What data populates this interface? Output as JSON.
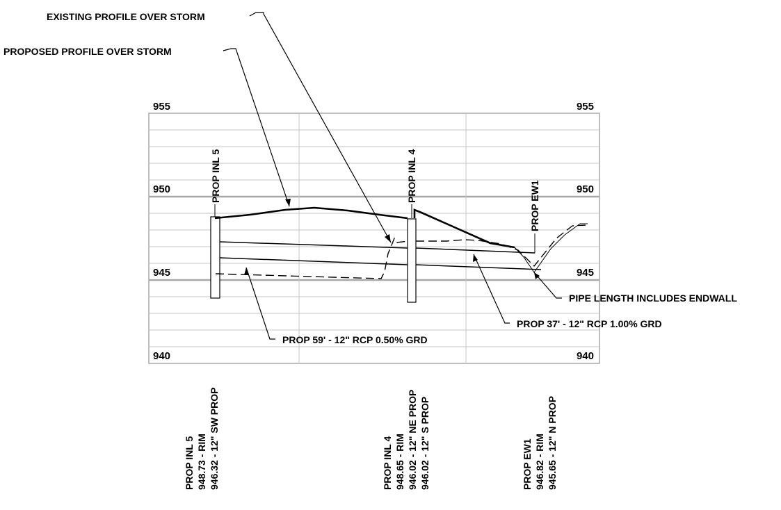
{
  "profile": {
    "elevations": {
      "left": [
        "955",
        "950",
        "945",
        "940"
      ],
      "right": [
        "955",
        "950",
        "945",
        "940"
      ]
    },
    "callouts": {
      "existing": "EXISTING PROFILE OVER STORM",
      "proposed": "PROPOSED PROFILE OVER STORM",
      "pipe_endwall": "PIPE LENGTH INCLUDES ENDWALL",
      "pipe_37": "PROP 37' - 12\" RCP 1.00% GRD",
      "pipe_59": "PROP 59' - 12\" RCP 0.50% GRD"
    },
    "structure_tags": {
      "inl5": "PROP INL 5",
      "inl4": "PROP INL 4",
      "ew1": "PROP EW1"
    },
    "structure_data": {
      "inl5": [
        "PROP INL 5",
        "948.73 - RIM",
        "946.32 - 12\" SW PROP"
      ],
      "inl4": [
        "PROP INL 4",
        "948.65 - RIM",
        "946.02 - 12\" NE PROP",
        "946.02 - 12\" S PROP"
      ],
      "ew1": [
        "PROP EW1",
        "946.82 - RIM",
        "945.65 - 12\" N PROP"
      ]
    }
  }
}
